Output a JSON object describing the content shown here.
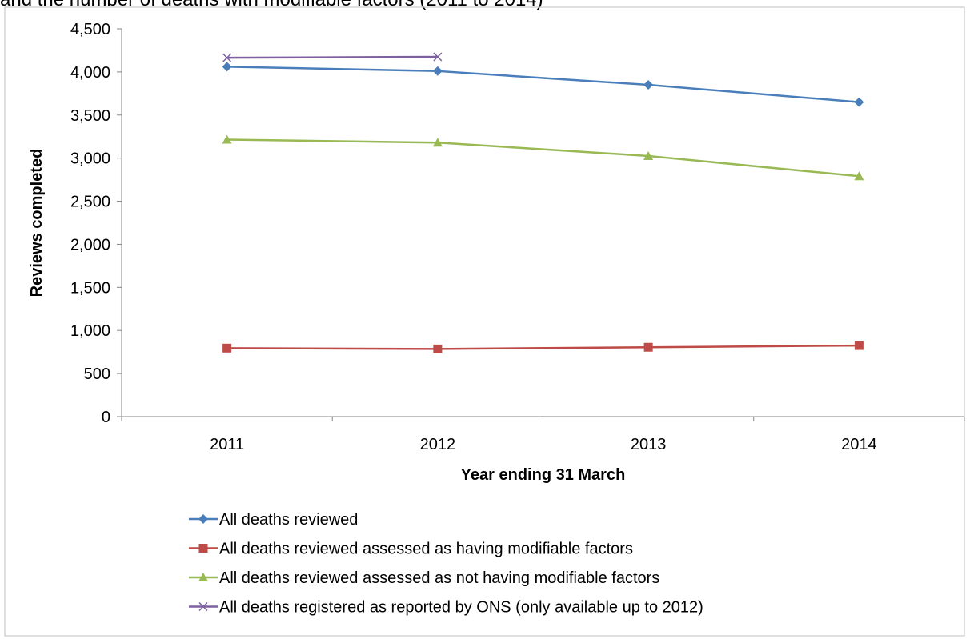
{
  "chart_data": {
    "type": "line",
    "title_cutoff": "and the number of deaths with modifiable factors (2011 to 2014)",
    "title": "",
    "xlabel": "Year ending 31 March",
    "ylabel": "Reviews completed",
    "categories": [
      "2011",
      "2012",
      "2013",
      "2014"
    ],
    "ylim": [
      0,
      4500
    ],
    "yticks": [
      0,
      500,
      1000,
      1500,
      2000,
      2500,
      3000,
      3500,
      4000,
      4500
    ],
    "ytick_labels": [
      "0",
      "500",
      "1,000",
      "1,500",
      "2,000",
      "2,500",
      "3,000",
      "3,500",
      "4,000",
      "4,500"
    ],
    "grid": false,
    "legend_position": "bottom",
    "series": [
      {
        "name": "All deaths reviewed",
        "values": [
          4060,
          4010,
          3850,
          3650
        ],
        "color": "#4a7ebb",
        "marker": "diamond"
      },
      {
        "name": "All deaths reviewed assessed as having modifiable factors",
        "values": [
          795,
          785,
          805,
          825
        ],
        "color": "#be4b48",
        "marker": "square"
      },
      {
        "name": "All deaths reviewed assessed as not having modifiable factors",
        "values": [
          3215,
          3180,
          3025,
          2790
        ],
        "color": "#98b954",
        "marker": "triangle"
      },
      {
        "name": "All deaths registered as reported by ONS (only available up to 2012)",
        "values": [
          4165,
          4175,
          null,
          null
        ],
        "color": "#7d60a0",
        "marker": "x"
      }
    ]
  }
}
